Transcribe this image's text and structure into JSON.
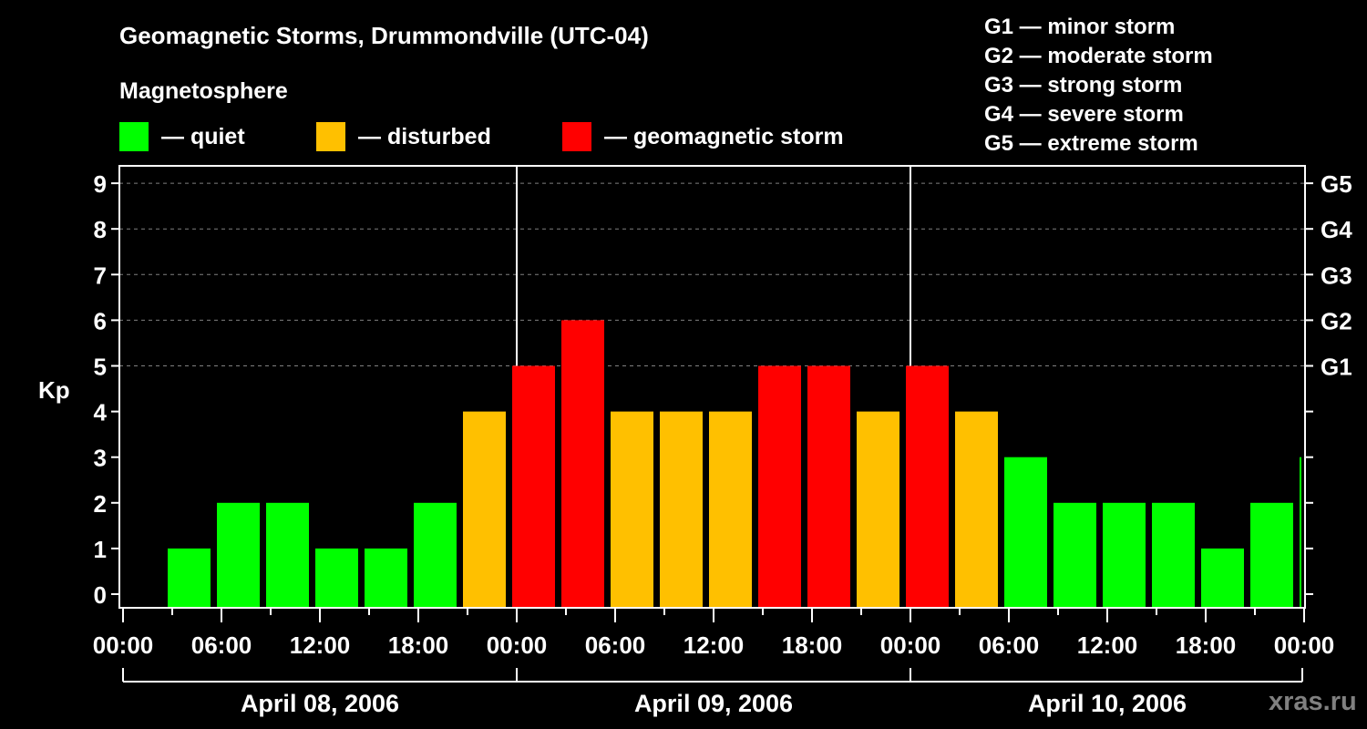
{
  "header": {
    "title": "Geomagnetic Storms, Drummondville (UTC-04)",
    "subtitle": "Magnetosphere"
  },
  "legend": [
    {
      "label": "— quiet",
      "color": "#00ff00"
    },
    {
      "label": "— disturbed",
      "color": "#ffc000"
    },
    {
      "label": "— geomagnetic storm",
      "color": "#ff0000"
    }
  ],
  "g_scale": [
    "G1 — minor storm",
    "G2 — moderate storm",
    "G3 — strong storm",
    "G4 — severe storm",
    "G5 — extreme storm"
  ],
  "watermark": "xras.ru",
  "chart_data": {
    "type": "bar",
    "title": "Geomagnetic Storms, Drummondville (UTC-04)",
    "xlabel": "",
    "ylabel": "Kp",
    "ylim": [
      0,
      9
    ],
    "yticks": [
      0,
      1,
      2,
      3,
      4,
      5,
      6,
      7,
      8,
      9
    ],
    "right_axis_labels": {
      "5": "G1",
      "6": "G2",
      "7": "G3",
      "8": "G4",
      "9": "G5"
    },
    "grid": "dashed horizontal at Kp 5-9",
    "xtick_labels": [
      "00:00",
      "06:00",
      "12:00",
      "18:00",
      "00:00",
      "06:00",
      "12:00",
      "18:00",
      "00:00",
      "06:00",
      "12:00",
      "18:00",
      "00:00"
    ],
    "date_labels": [
      "April 08, 2006",
      "April 09, 2006",
      "April 10, 2006"
    ],
    "interval_hours": 3,
    "first_bar_start_hour": 2.5,
    "values": [
      1,
      2,
      2,
      1,
      1,
      2,
      4,
      5,
      6,
      4,
      4,
      4,
      5,
      5,
      4,
      5,
      4,
      3,
      2,
      2,
      2,
      1,
      2,
      3
    ],
    "colors_by_level": {
      "quiet": "0-3",
      "disturbed": "4",
      "storm": "5+"
    }
  }
}
